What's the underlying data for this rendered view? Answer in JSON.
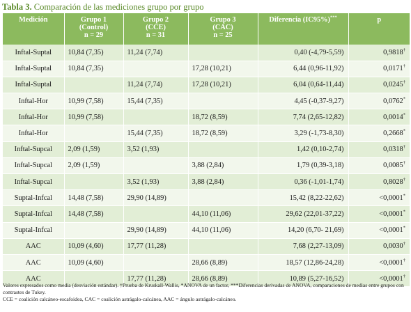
{
  "title": {
    "label": "Tabla 3.",
    "text": "Comparación de las mediciones grupo por grupo"
  },
  "header": {
    "medicion": "Medición",
    "g1": [
      "Grupo 1",
      "(Control)",
      "n = 29"
    ],
    "g2": [
      "Grupo 2",
      "(CCE)",
      "n = 31"
    ],
    "g3": [
      "Grupo 3",
      "(CAC)",
      "n = 25"
    ],
    "diff": "Diferencia (IC95%)",
    "diff_sup": "***",
    "p": "p"
  },
  "rows": [
    {
      "m": "Inftal-Suptal",
      "g1": "10,84 (7,35)",
      "g2": "11,24 (7,74)",
      "g3": "",
      "d": "0,40 (-4,79-5,59)",
      "p": "0,9818",
      "s": "†"
    },
    {
      "m": "Inftal-Suptal",
      "g1": "10,84 (7,35)",
      "g2": "",
      "g3": "17,28 (10,21)",
      "d": "6,44 (0,96-11,92)",
      "p": "0,0171",
      "s": "†"
    },
    {
      "m": "Inftal-Suptal",
      "g1": "",
      "g2": "11,24 (7,74)",
      "g3": "17,28 (10,21)",
      "d": "6,04 (0,64-11,44)",
      "p": "0,0245",
      "s": "†"
    },
    {
      "m": "Inftal-Hor",
      "g1": "10,99 (7,58)",
      "g2": "15,44 (7,35)",
      "g3": "",
      "d": "4,45 (-0,37-9,27)",
      "p": "0,0762",
      "s": "*"
    },
    {
      "m": "Inftal-Hor",
      "g1": "10,99 (7,58)",
      "g2": "",
      "g3": "18,72 (8,59)",
      "d": "7,74 (2,65-12,82)",
      "p": "0,0014",
      "s": "*"
    },
    {
      "m": "Inftal-Hor",
      "g1": "",
      "g2": "15,44 (7,35)",
      "g3": "18,72 (8,59)",
      "d": "3,29 (-1,73-8,30)",
      "p": "0,2668",
      "s": "*"
    },
    {
      "m": "Inftal-Supcal",
      "g1": "2,09 (1,59)",
      "g2": "3,52 (1,93)",
      "g3": "",
      "d": "1,42 (0,10-2,74)",
      "p": "0,0318",
      "s": "†"
    },
    {
      "m": "Inftal-Supcal",
      "g1": "2,09 (1,59)",
      "g2": "",
      "g3": "3,88 (2,84)",
      "d": "1,79 (0,39-3,18)",
      "p": "0,0085",
      "s": "†"
    },
    {
      "m": "Inftal-Supcal",
      "g1": "",
      "g2": "3,52 (1,93)",
      "g3": "3,88 (2,84)",
      "d": "0,36 (-1,01-1,74)",
      "p": "0,8028",
      "s": "†"
    },
    {
      "m": "Suptal-Infcal",
      "g1": "14,48 (7,58)",
      "g2": "29,90 (14,89)",
      "g3": "",
      "d": "15,42 (8,22-22,62)",
      "p": "<0,0001",
      "s": "*"
    },
    {
      "m": "Suptal-Infcal",
      "g1": "14,48 (7,58)",
      "g2": "",
      "g3": "44,10 (11,06)",
      "d": "29,62 (22,01-37,22)",
      "p": "<0,0001",
      "s": "*"
    },
    {
      "m": "Suptal-Infcal",
      "g1": "",
      "g2": "29,90 (14,89)",
      "g3": "44,10 (11,06)",
      "d": "14,20 (6,70- 21,69)",
      "p": "<0,0001",
      "s": "*"
    },
    {
      "m": "AAC",
      "g1": "10,09 (4,60)",
      "g2": "17,77 (11,28)",
      "g3": "",
      "d": "7,68 (2,27-13,09)",
      "p": "0,0030",
      "s": "†"
    },
    {
      "m": "AAC",
      "g1": "10,09 (4,60)",
      "g2": "",
      "g3": "28,66 (8,89)",
      "d": "18,57 (12,86-24,28)",
      "p": "<0,0001",
      "s": "†"
    },
    {
      "m": "AAC",
      "g1": "",
      "g2": "17,77 (11,28)",
      "g3": "28,66 (8,89)",
      "d": "10,89 (5,27-16,52)",
      "p": "<0,0001",
      "s": "†"
    }
  ],
  "notes": {
    "line1": "Valores expresados como media (desviación estándar). †Prueba de Kruskall-Wallis, *ANOVA de un factor, ***Diferencias derivadas de ANOVA, comparaciones de medias entre grupos con contrastes de Tukey.",
    "line2": "CCE = coalición calcáneo-escafoidea, CAC = coalición astrágalo-calcánea, AAC = ángulo astrágalo-calcáneo."
  }
}
